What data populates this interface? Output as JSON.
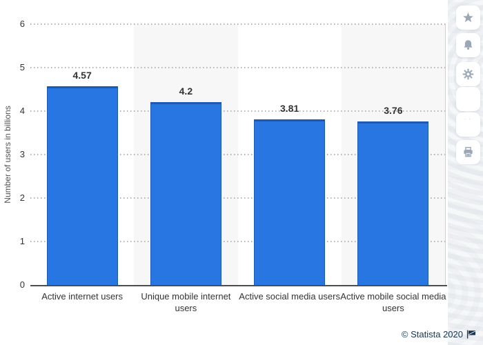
{
  "chart_data": {
    "type": "bar",
    "categories": [
      "Active internet users",
      "Unique mobile internet users",
      "Active social media users",
      "Active mobile social media users"
    ],
    "values": [
      4.57,
      4.2,
      3.81,
      3.76
    ],
    "value_labels": [
      "4.57",
      "4.2",
      "3.81",
      "3.76"
    ],
    "ylabel": "Number of users in billions",
    "xlabel": "",
    "yticks": [
      0,
      1,
      2,
      3,
      4,
      5,
      6
    ],
    "ylim": [
      0,
      6
    ],
    "grid": "horizontal-dotted",
    "legend": "none",
    "colors": {
      "bar": "#2776e2",
      "bar_edge": "#1d58b4",
      "band": "#f7f7f8",
      "grid": "#b3b3b3",
      "axis": "#4d4d4d",
      "text": "#333333"
    }
  },
  "toolbar": {
    "buttons": [
      {
        "name": "favorite",
        "icon": "star-icon"
      },
      {
        "name": "notifications",
        "icon": "bell-icon"
      },
      {
        "name": "settings",
        "icon": "gear-icon"
      },
      {
        "name": "blank",
        "icon": "none"
      },
      {
        "name": "cite",
        "icon": "quote-icon",
        "glyph": "”"
      },
      {
        "name": "print",
        "icon": "printer-icon"
      }
    ],
    "icon_color": "#9aa7b5"
  },
  "footer": {
    "copyright": "© Statista 2020",
    "flag": "flag-icon",
    "text_color": "#16344f"
  }
}
